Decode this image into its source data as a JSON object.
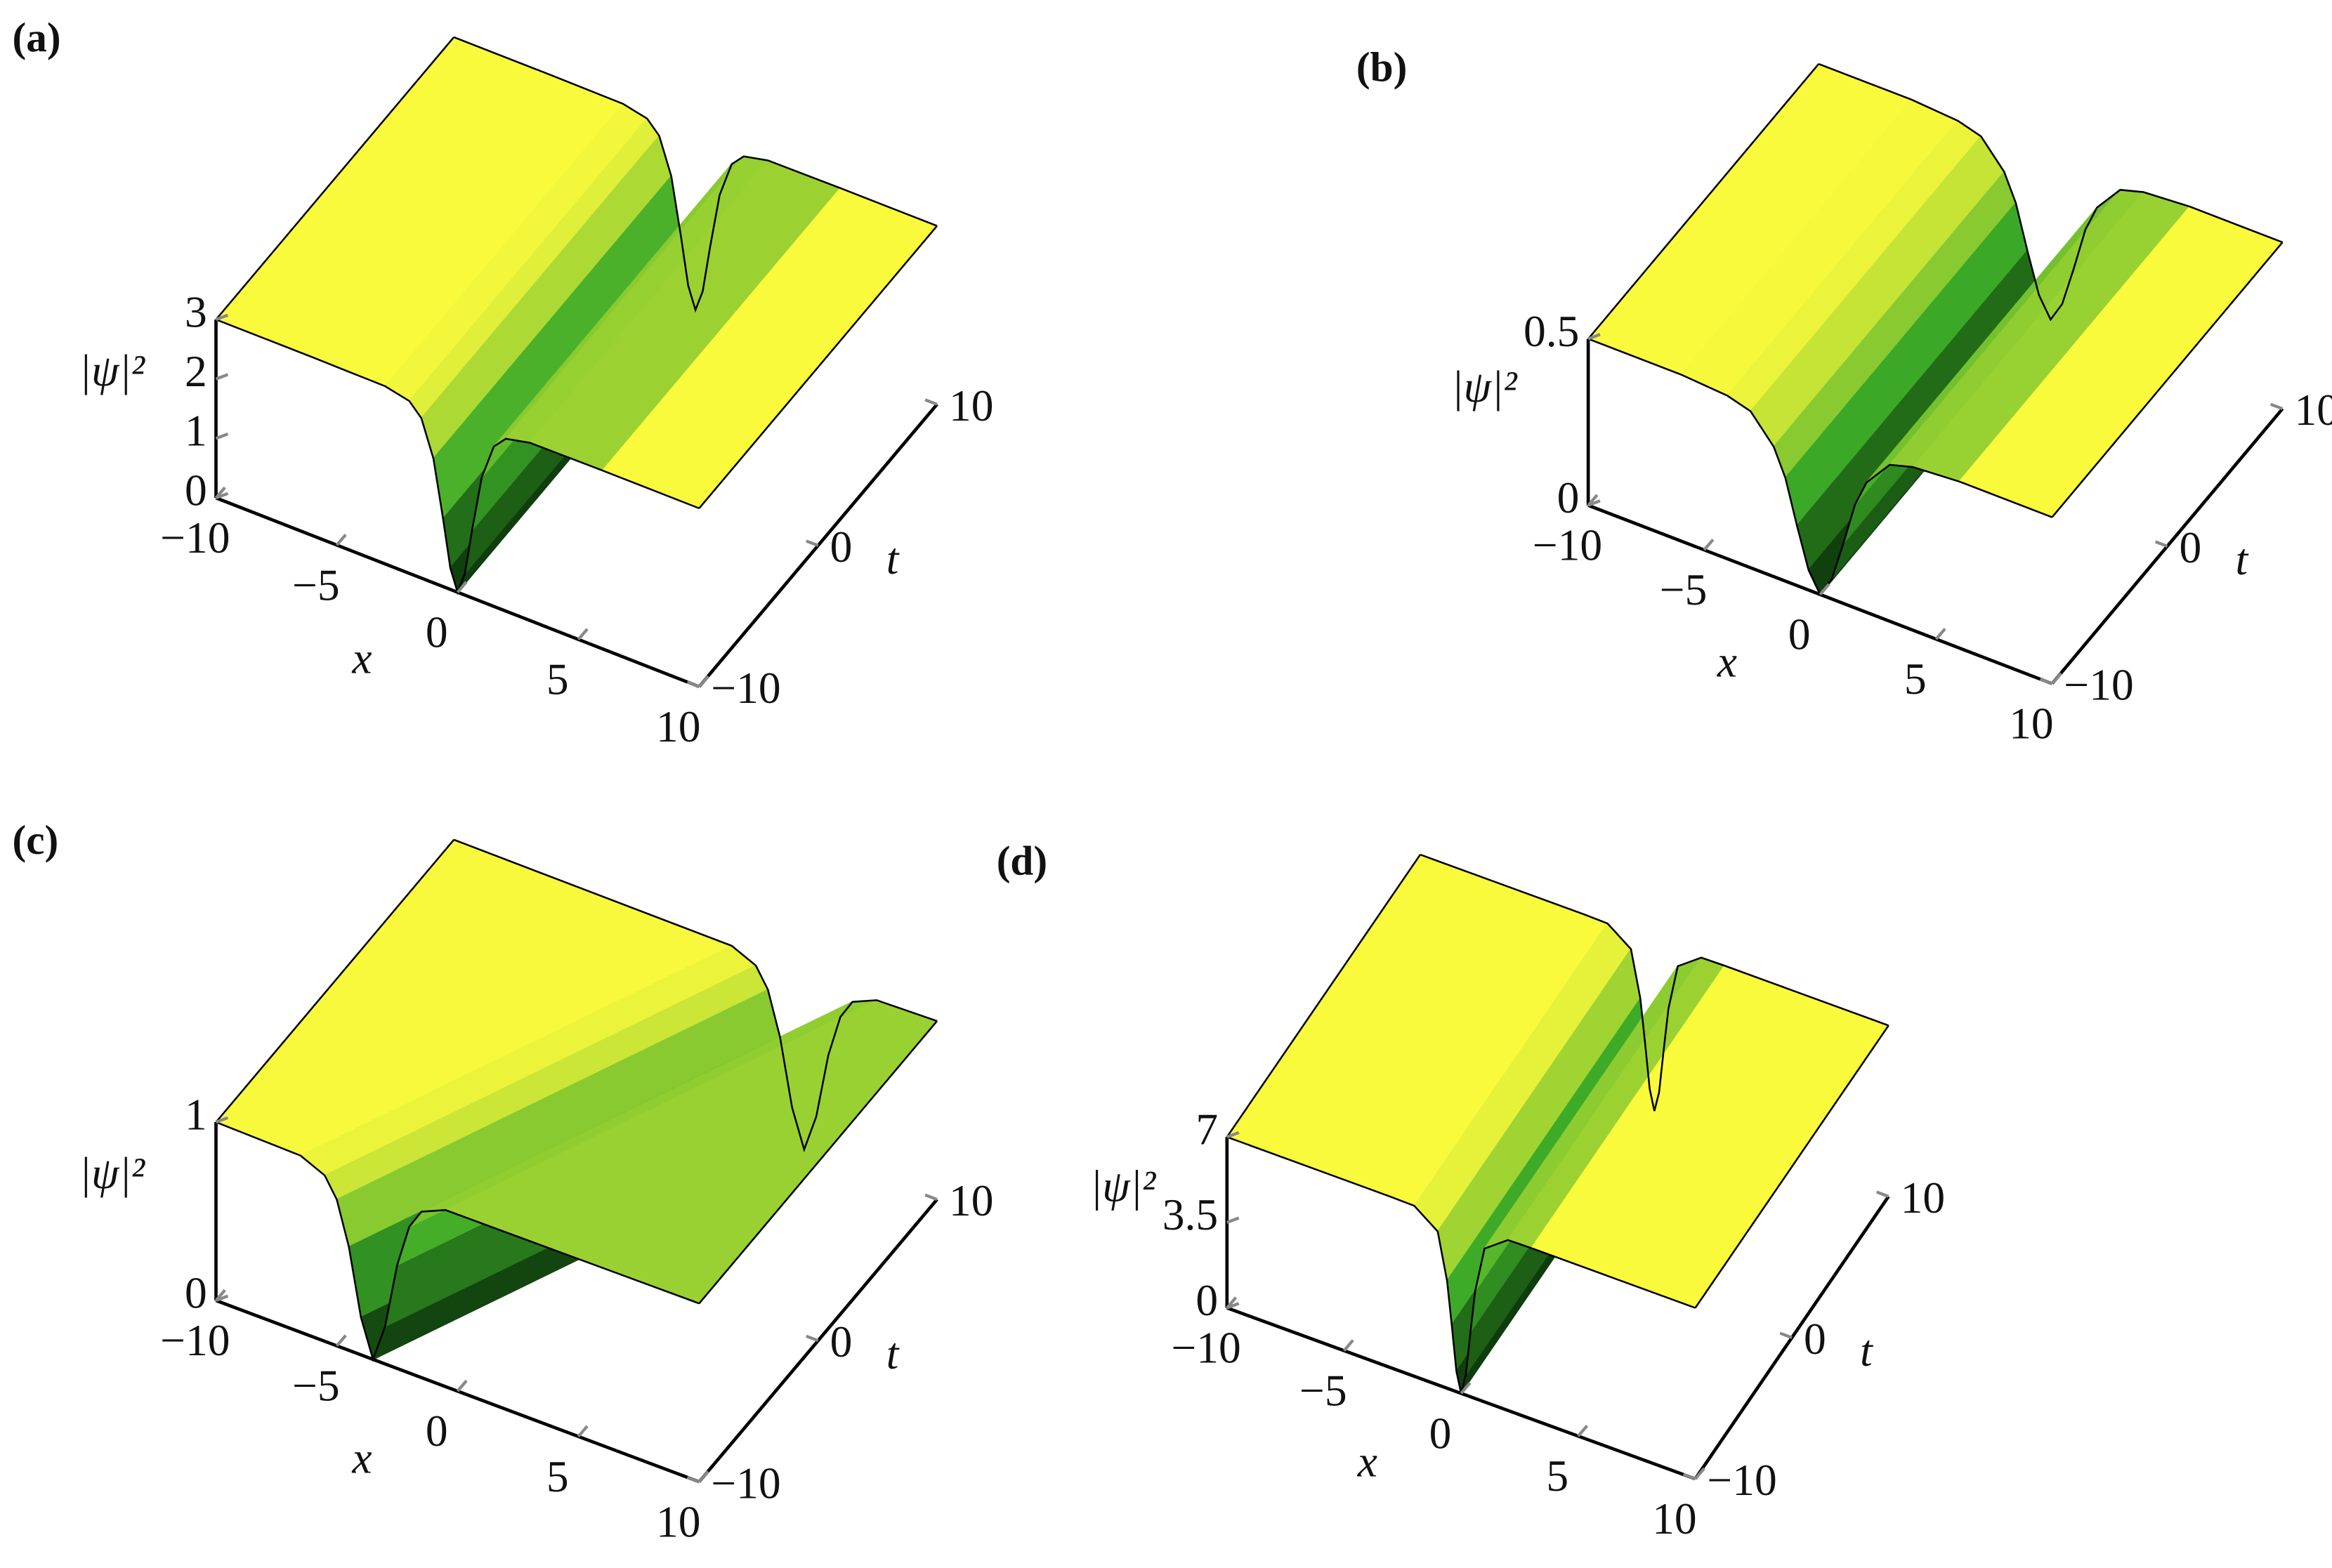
{
  "chart_data": [
    {
      "type": "surface",
      "label": "(a)",
      "xlabel": "x",
      "ylabel": "t",
      "zlabel": "|ψ|²",
      "xlim": [
        -10,
        10
      ],
      "ylim": [
        -10,
        10
      ],
      "zlim": [
        0,
        3
      ],
      "xticks": [
        {
          "value": -10,
          "label": "−10"
        },
        {
          "value": -5,
          "label": "−5"
        },
        0,
        5,
        10
      ],
      "yticks": [
        {
          "value": -10,
          "label": "−10"
        },
        0,
        10
      ],
      "zticks": [
        0,
        1,
        2,
        3
      ],
      "colors": [
        "#0a320a",
        "#3caa28",
        "#fafa3c"
      ],
      "rows": [
        {
          "t": -10,
          "x": [
            -10,
            -6,
            -3,
            -2,
            -1.5,
            -1,
            -0.6,
            -0.3,
            0,
            0.3,
            0.6,
            1,
            1.5,
            2,
            3,
            6,
            10
          ],
          "z": [
            3,
            3,
            2.99,
            2.9,
            2.69,
            2.09,
            1.14,
            0.36,
            0,
            0.36,
            1.14,
            2.09,
            2.69,
            2.9,
            2.99,
            3,
            3
          ]
        },
        {
          "t": 10,
          "x": [
            -10,
            -6,
            -3,
            -2,
            -1.5,
            -1,
            -0.6,
            -0.3,
            0,
            0.3,
            0.6,
            1,
            1.5,
            2,
            3,
            6,
            10
          ],
          "z": [
            3,
            3,
            2.99,
            2.9,
            2.69,
            2.09,
            1.14,
            0.36,
            0,
            0.36,
            1.14,
            2.09,
            2.69,
            2.9,
            2.99,
            3,
            3
          ]
        }
      ]
    },
    {
      "type": "surface",
      "label": "(b)",
      "xlabel": "x",
      "ylabel": "t",
      "zlabel": "|ψ|²",
      "xlim": [
        -10,
        10
      ],
      "ylim": [
        -10,
        10
      ],
      "zlim": [
        0,
        0.5
      ],
      "xticks": [
        {
          "value": -10,
          "label": "−10"
        },
        {
          "value": -5,
          "label": "−5"
        },
        0,
        5,
        10
      ],
      "yticks": [
        {
          "value": -10,
          "label": "−10"
        },
        0,
        10
      ],
      "zticks": [
        0,
        0.5
      ],
      "colors": [
        "#0a320a",
        "#3caa28",
        "#fafa3c"
      ],
      "rows": [
        {
          "t": -10,
          "x": [
            -10,
            -6,
            -4,
            -3,
            -2,
            -1.5,
            -1,
            -0.5,
            0,
            0.5,
            1,
            1.5,
            2,
            3,
            4,
            6,
            10
          ],
          "z": [
            0.5,
            0.5,
            0.49,
            0.47,
            0.39,
            0.31,
            0.18,
            0.06,
            0,
            0.06,
            0.18,
            0.31,
            0.39,
            0.47,
            0.49,
            0.5,
            0.5
          ]
        },
        {
          "t": 10,
          "x": [
            -10,
            -6,
            -4,
            -3,
            -2,
            -1.5,
            -1,
            -0.5,
            0,
            0.5,
            1,
            1.5,
            2,
            3,
            4,
            6,
            10
          ],
          "z": [
            0.5,
            0.5,
            0.49,
            0.47,
            0.39,
            0.31,
            0.18,
            0.06,
            0,
            0.06,
            0.18,
            0.31,
            0.39,
            0.47,
            0.49,
            0.5,
            0.5
          ]
        }
      ]
    },
    {
      "type": "surface",
      "label": "(c)",
      "xlabel": "x",
      "ylabel": "t",
      "zlabel": "|ψ|²",
      "xlim": [
        -10,
        10
      ],
      "ylim": [
        -10,
        10
      ],
      "zlim": [
        0,
        1
      ],
      "xticks": [
        {
          "value": -10,
          "label": "−10"
        },
        {
          "value": -5,
          "label": "−5"
        },
        0,
        5,
        10
      ],
      "yticks": [
        {
          "value": -10,
          "label": "−10"
        },
        0,
        10
      ],
      "zticks": [
        0,
        1
      ],
      "colors": [
        "#0a320a",
        "#3caa28",
        "#fafa3c"
      ],
      "rows": [
        {
          "t": -10,
          "x": [
            -10,
            -6.5,
            -5.5,
            -5,
            -4.5,
            -4,
            -3.5,
            -3,
            -2.5,
            -2,
            -1.5,
            -0.5,
            10
          ],
          "z": [
            1,
            0.99,
            0.93,
            0.82,
            0.58,
            0.21,
            0,
            0.21,
            0.58,
            0.82,
            0.93,
            0.99,
            1
          ]
        },
        {
          "t": 10,
          "x": [
            -10,
            1.5,
            2.5,
            3,
            3.5,
            4,
            4.5,
            5,
            5.5,
            6,
            6.5,
            7.5,
            10
          ],
          "z": [
            1,
            0.99,
            0.93,
            0.82,
            0.58,
            0.21,
            0,
            0.21,
            0.58,
            0.82,
            0.93,
            0.99,
            1
          ]
        }
      ]
    },
    {
      "type": "surface",
      "label": "(d)",
      "xlabel": "x",
      "ylabel": "t",
      "zlabel": "|ψ|²",
      "xlim": [
        -10,
        10
      ],
      "ylim": [
        -10,
        10
      ],
      "zlim": [
        0,
        7
      ],
      "xticks": [
        {
          "value": -10,
          "label": "−10"
        },
        {
          "value": -5,
          "label": "−5"
        },
        0,
        5,
        10
      ],
      "yticks": [
        {
          "value": -10,
          "label": "−10"
        },
        0,
        10
      ],
      "zticks": [
        0,
        3.5,
        7
      ],
      "colors": [
        "#0a320a",
        "#3caa28",
        "#fafa3c"
      ],
      "rows": [
        {
          "t": -10,
          "x": [
            -10,
            -3,
            -2,
            -1,
            -0.6,
            -0.4,
            -0.2,
            0,
            0.2,
            0.4,
            0.6,
            1,
            2,
            3,
            10
          ],
          "z": [
            7,
            7,
            6.98,
            6.28,
            4.4,
            2.66,
            0.83,
            0,
            0.83,
            2.66,
            4.4,
            6.28,
            6.98,
            7,
            7
          ]
        },
        {
          "t": 10,
          "x": [
            -10,
            -3,
            -2,
            -1,
            -0.6,
            -0.4,
            -0.2,
            0,
            0.2,
            0.4,
            0.6,
            1,
            2,
            3,
            10
          ],
          "z": [
            7,
            7,
            6.98,
            6.28,
            4.4,
            2.66,
            0.83,
            0,
            0.83,
            2.66,
            4.4,
            6.28,
            6.98,
            7,
            7
          ]
        }
      ]
    }
  ]
}
